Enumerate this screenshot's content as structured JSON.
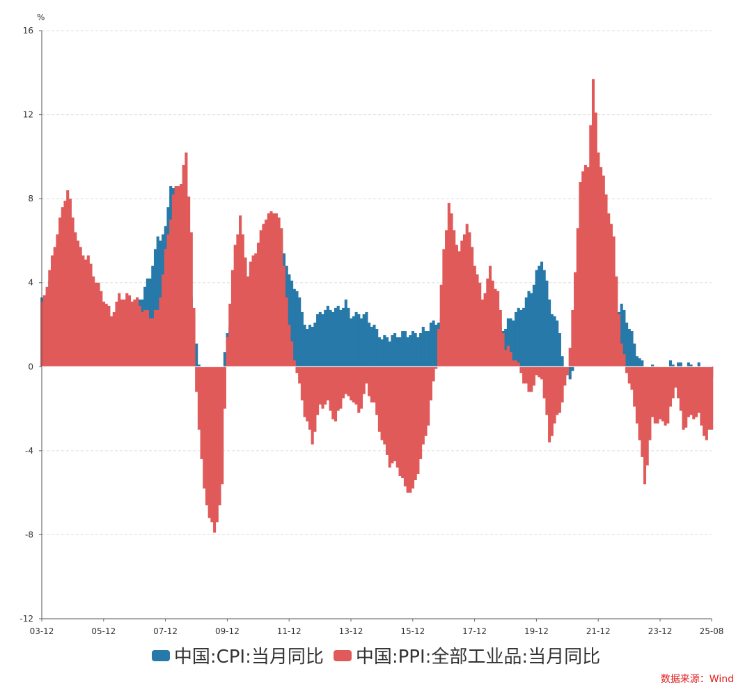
{
  "chart_data": {
    "type": "bar",
    "y_unit": "%",
    "ylim": [
      -12,
      16
    ],
    "y_ticks": [
      16,
      12,
      8,
      4,
      0,
      -4,
      -8,
      -12
    ],
    "x_range": [
      "2003-12",
      "2025-08"
    ],
    "x_tick_labels": [
      "03-12",
      "05-12",
      "07-12",
      "09-12",
      "11-12",
      "13-12",
      "15-12",
      "17-12",
      "19-12",
      "21-12",
      "23-12",
      "25-08"
    ],
    "grid": true,
    "legend_position": "bottom",
    "series": [
      {
        "name": "中国:CPI:当月同比",
        "color": "#2679a8",
        "x": [
          "2003-12",
          "2004-06",
          "2004-12",
          "2005-06",
          "2005-12",
          "2006-06",
          "2006-12",
          "2007-03",
          "2007-06",
          "2007-09",
          "2007-12",
          "2008-02",
          "2008-06",
          "2008-09",
          "2008-12",
          "2009-03",
          "2009-07",
          "2009-10",
          "2009-12",
          "2010-06",
          "2010-11",
          "2011-03",
          "2011-07",
          "2011-09",
          "2011-12",
          "2012-03",
          "2012-07",
          "2012-12",
          "2013-06",
          "2013-10",
          "2013-12",
          "2014-06",
          "2014-12",
          "2015-06",
          "2015-12",
          "2016-06",
          "2016-12",
          "2017-06",
          "2017-12",
          "2018-06",
          "2018-12",
          "2019-03",
          "2019-06",
          "2019-10",
          "2019-12",
          "2020-02",
          "2020-06",
          "2020-09",
          "2020-11",
          "2021-01",
          "2021-06",
          "2021-12",
          "2022-06",
          "2022-09",
          "2022-12",
          "2023-03",
          "2023-07",
          "2023-09",
          "2023-12",
          "2024-06",
          "2024-12",
          "2025-03",
          "2025-06",
          "2025-08"
        ],
        "values": [
          3.2,
          5.0,
          2.4,
          1.6,
          1.6,
          1.5,
          2.8,
          3.3,
          4.4,
          6.2,
          6.5,
          8.7,
          7.1,
          4.6,
          1.2,
          -1.2,
          -1.8,
          -0.5,
          1.9,
          2.9,
          5.1,
          5.4,
          6.5,
          6.1,
          4.1,
          3.6,
          1.8,
          2.5,
          2.7,
          3.2,
          2.5,
          2.3,
          1.5,
          1.4,
          1.6,
          1.9,
          2.1,
          1.5,
          1.8,
          1.9,
          1.9,
          2.3,
          2.7,
          3.8,
          4.5,
          5.2,
          2.5,
          1.7,
          -0.5,
          -0.3,
          1.1,
          1.5,
          2.5,
          2.8,
          1.8,
          0.7,
          -0.3,
          0.0,
          -0.3,
          0.2,
          0.1,
          -0.1,
          -0.1,
          -0.4
        ]
      },
      {
        "name": "中国:PPI:全部工业品:当月同比",
        "color": "#e05a5a",
        "x": [
          "2003-12",
          "2004-03",
          "2004-06",
          "2004-10",
          "2004-12",
          "2005-03",
          "2005-06",
          "2005-09",
          "2005-12",
          "2006-03",
          "2006-06",
          "2006-09",
          "2006-12",
          "2007-03",
          "2007-06",
          "2007-09",
          "2007-12",
          "2008-03",
          "2008-06",
          "2008-08",
          "2008-10",
          "2008-12",
          "2009-03",
          "2009-07",
          "2009-10",
          "2009-12",
          "2010-03",
          "2010-05",
          "2010-08",
          "2010-12",
          "2011-03",
          "2011-07",
          "2011-09",
          "2011-12",
          "2012-03",
          "2012-06",
          "2012-09",
          "2012-12",
          "2013-03",
          "2013-06",
          "2013-09",
          "2013-12",
          "2014-03",
          "2014-06",
          "2014-09",
          "2014-12",
          "2015-03",
          "2015-06",
          "2015-09",
          "2015-12",
          "2016-03",
          "2016-06",
          "2016-09",
          "2016-12",
          "2017-02",
          "2017-06",
          "2017-09",
          "2017-12",
          "2018-03",
          "2018-06",
          "2018-09",
          "2018-12",
          "2019-03",
          "2019-06",
          "2019-09",
          "2019-12",
          "2020-02",
          "2020-05",
          "2020-09",
          "2020-12",
          "2021-03",
          "2021-05",
          "2021-08",
          "2021-10",
          "2021-12",
          "2022-03",
          "2022-06",
          "2022-09",
          "2022-12",
          "2023-03",
          "2023-06",
          "2023-09",
          "2023-12",
          "2024-03",
          "2024-06",
          "2024-09",
          "2024-12",
          "2025-03",
          "2025-06",
          "2025-08"
        ],
        "values": [
          3.0,
          4.6,
          6.4,
          8.4,
          7.1,
          5.6,
          5.2,
          4.0,
          3.2,
          2.5,
          3.5,
          3.4,
          3.1,
          2.7,
          2.5,
          2.7,
          5.4,
          8.0,
          8.8,
          10.1,
          6.6,
          -1.1,
          -6.0,
          -8.2,
          -5.8,
          1.7,
          5.9,
          7.1,
          4.3,
          5.9,
          7.3,
          7.5,
          6.5,
          1.7,
          -0.3,
          -2.1,
          -3.5,
          -1.9,
          -1.9,
          -2.7,
          -1.3,
          -1.4,
          -2.3,
          -1.1,
          -1.8,
          -3.3,
          -4.6,
          -4.8,
          -5.9,
          -5.9,
          -4.3,
          -2.6,
          -0.1,
          5.5,
          7.8,
          5.5,
          6.9,
          4.9,
          3.1,
          4.7,
          3.6,
          0.9,
          0.4,
          -0.3,
          -1.2,
          -0.5,
          -0.4,
          -3.7,
          -2.1,
          -0.4,
          4.4,
          9.0,
          9.5,
          13.5,
          10.3,
          8.3,
          6.1,
          0.9,
          -0.8,
          -2.5,
          -5.4,
          -2.5,
          -2.7,
          -2.8,
          -0.8,
          -2.8,
          -2.3,
          -2.5,
          -3.6,
          -2.9
        ]
      }
    ]
  },
  "legend": {
    "cpi_label": "中国:CPI:当月同比",
    "ppi_label": "中国:PPI:全部工业品:当月同比"
  },
  "source_text": "数据来源：Wind"
}
